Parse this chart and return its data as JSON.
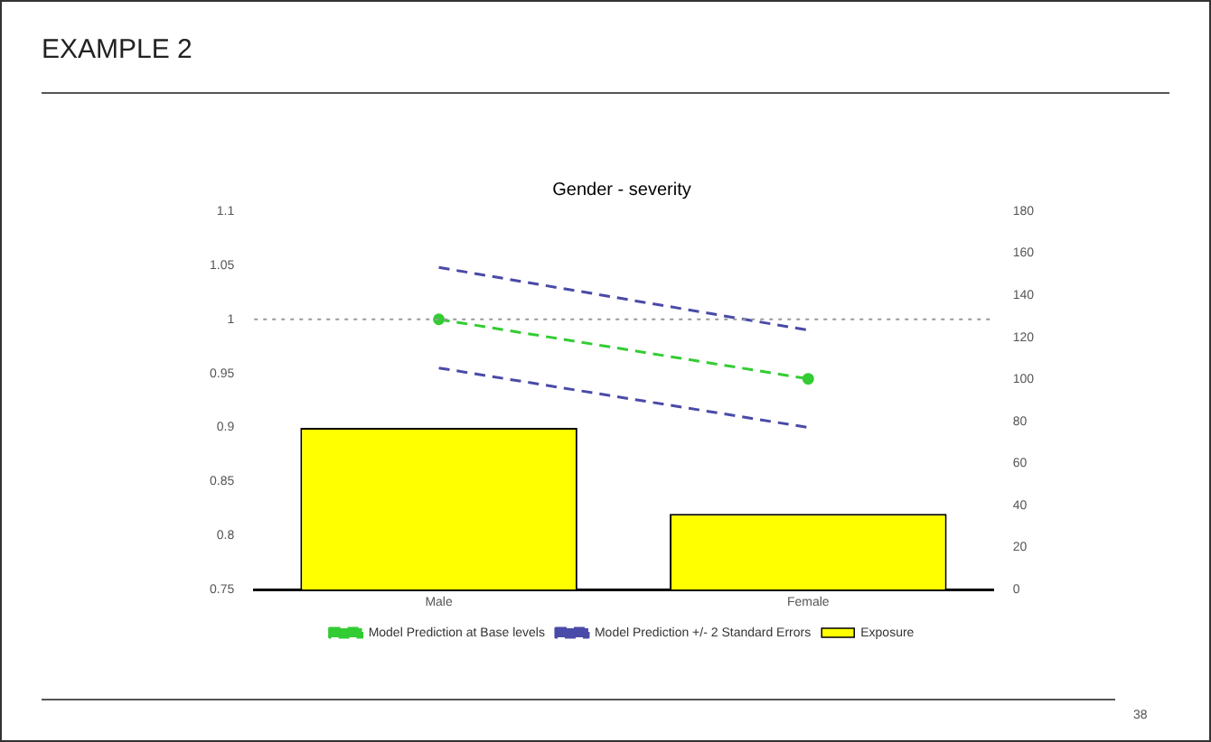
{
  "chart_data": {
    "type": "bar",
    "title": "Gender - severity",
    "categories": [
      "Male",
      "Female"
    ],
    "series": [
      {
        "name": "Exposure",
        "axis": "y2",
        "color": "#ffff00",
        "values": [
          77,
          36
        ]
      },
      {
        "name": "Model Prediction at Base levels",
        "type": "line",
        "color": "#33cc33",
        "marker": "circle",
        "line_style": "dashed",
        "values": [
          1.0,
          0.945
        ]
      },
      {
        "name": "Model Prediction +/- 2 Standard Errors",
        "type": "line",
        "color": "#4a4aa8",
        "marker": "none",
        "line_style": "dashed",
        "values": [
          1.048,
          0.99
        ]
      },
      {
        "type": "line",
        "color": "#4a4aa8",
        "marker": "none",
        "line_style": "dashed",
        "values": [
          0.955,
          0.9
        ]
      }
    ],
    "ylim": [
      0.75,
      1.1
    ],
    "yticks": [
      0.75,
      0.8,
      0.85,
      0.9,
      0.95,
      1,
      1.05,
      1.1
    ],
    "y2lim": [
      0,
      180
    ],
    "y2ticks": [
      0,
      20,
      40,
      60,
      80,
      100,
      120,
      140,
      160,
      180
    ],
    "ref_lines": [
      {
        "axis": "y",
        "value": 1,
        "color": "#999999",
        "line_style": "dotted"
      }
    ],
    "legend": "bottom",
    "annotations": [
      "EXAMPLE 2",
      "38"
    ]
  }
}
